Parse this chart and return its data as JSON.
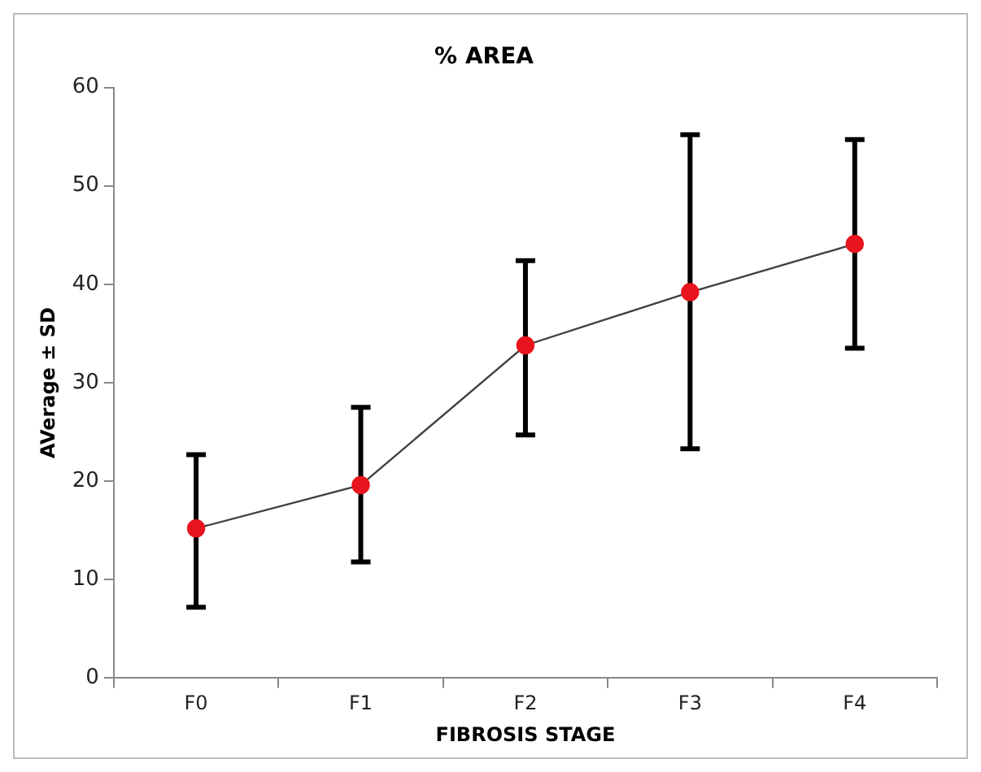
{
  "chart_data": {
    "type": "line",
    "title": "% AREA",
    "xlabel": "FIBROSIS STAGE",
    "ylabel": "AVerage ± SD",
    "categories": [
      "F0",
      "F1",
      "F2",
      "F3",
      "F4"
    ],
    "series": [
      {
        "color": "#e8141e",
        "values": [
          15.2,
          19.6,
          33.8,
          39.2,
          44.1
        ],
        "errors": [
          [
            7.2,
            22.7
          ],
          [
            11.8,
            27.5
          ],
          [
            24.7,
            42.4
          ],
          [
            23.3,
            55.2
          ],
          [
            33.5,
            54.7
          ]
        ]
      }
    ],
    "ylim": [
      0,
      60
    ],
    "yticks": [
      0,
      10,
      20,
      30,
      40,
      50,
      60
    ],
    "grid": false,
    "legend": false,
    "marker": "circle",
    "line_style": "solid"
  }
}
